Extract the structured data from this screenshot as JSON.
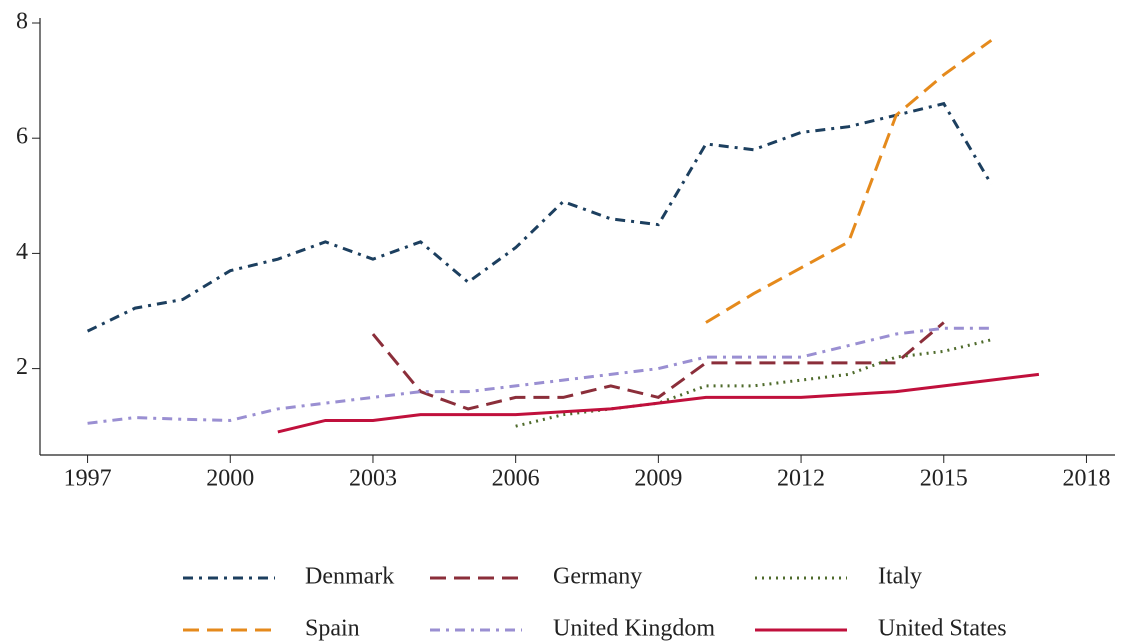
{
  "chart_data": {
    "type": "line",
    "x": [
      1997,
      1998,
      1999,
      2000,
      2001,
      2002,
      2003,
      2004,
      2005,
      2006,
      2007,
      2008,
      2009,
      2010,
      2011,
      2012,
      2013,
      2014,
      2015,
      2016,
      2017
    ],
    "xlim": [
      1996,
      2018.6
    ],
    "xticks": [
      1997,
      2000,
      2003,
      2006,
      2009,
      2012,
      2015,
      2018
    ],
    "ylim": [
      0.5,
      8
    ],
    "yticks": [
      2,
      4,
      6,
      8
    ],
    "grid": false,
    "legend": "bottom",
    "series": [
      {
        "name": "Denmark",
        "color": "#1c3f5f",
        "dash": "dashdot",
        "values": [
          2.65,
          3.05,
          3.2,
          3.7,
          3.9,
          4.2,
          3.9,
          4.2,
          3.5,
          4.1,
          4.9,
          4.6,
          4.5,
          5.9,
          5.8,
          6.1,
          6.2,
          6.4,
          6.6,
          5.2,
          null
        ]
      },
      {
        "name": "Germany",
        "color": "#8b2e3a",
        "dash": "dash",
        "values": [
          null,
          null,
          null,
          null,
          null,
          null,
          2.6,
          1.6,
          1.3,
          1.5,
          1.5,
          1.7,
          1.5,
          2.1,
          2.1,
          2.1,
          2.1,
          2.1,
          2.8,
          null,
          null
        ]
      },
      {
        "name": "Italy",
        "color": "#4f6b2c",
        "dash": "dot",
        "values": [
          null,
          null,
          null,
          null,
          null,
          null,
          null,
          null,
          null,
          1.0,
          1.2,
          1.3,
          1.4,
          1.7,
          1.7,
          1.8,
          1.9,
          2.2,
          2.3,
          2.5,
          null
        ]
      },
      {
        "name": "Spain",
        "color": "#e58a1c",
        "dash": "dash",
        "values": [
          null,
          null,
          null,
          null,
          null,
          null,
          null,
          null,
          null,
          null,
          null,
          null,
          null,
          2.8,
          3.3,
          3.75,
          4.2,
          6.4,
          7.1,
          7.7,
          null
        ]
      },
      {
        "name": "United Kingdom",
        "color": "#9a8fd2",
        "dash": "dashdot",
        "values": [
          1.05,
          1.15,
          1.12,
          1.1,
          1.3,
          1.4,
          1.5,
          1.6,
          1.6,
          1.7,
          1.8,
          1.9,
          2.0,
          2.2,
          2.2,
          2.2,
          2.4,
          2.6,
          2.7,
          2.7,
          null
        ]
      },
      {
        "name": "United States",
        "color": "#c0103c",
        "dash": "solid",
        "values": [
          null,
          null,
          null,
          null,
          0.9,
          1.1,
          1.1,
          1.2,
          1.2,
          1.2,
          1.25,
          1.3,
          1.4,
          1.5,
          1.5,
          1.5,
          1.55,
          1.6,
          1.7,
          1.8,
          1.9
        ]
      }
    ]
  }
}
